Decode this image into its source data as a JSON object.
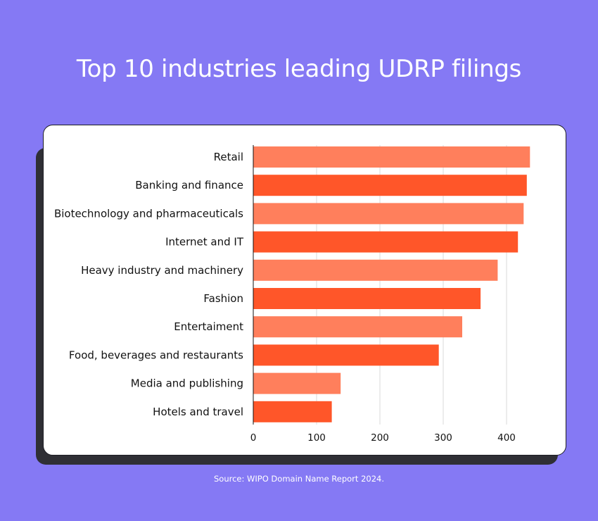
{
  "page": {
    "title": "Top 10 industries leading UDRP filings",
    "source": "Source: WIPO Domain Name Report 2024."
  },
  "colors": {
    "background": "#8579f4",
    "bar_light": "#ff7f5c",
    "bar_dark": "#ff5629",
    "grid": "#d9d9d9",
    "axis": "#111111"
  },
  "chart_data": {
    "type": "bar",
    "orientation": "horizontal",
    "title": "Top 10 industries leading UDRP filings",
    "xlabel": "",
    "ylabel": "",
    "categories": [
      "Retail",
      "Banking and finance",
      "Biotechnology and pharmaceuticals",
      "Internet and IT",
      "Heavy industry and machinery",
      "Fashion",
      "Entertaiment",
      "Food, beverages and restaurants",
      "Media and publishing",
      "Hotels and travel"
    ],
    "values": [
      437,
      432,
      427,
      418,
      386,
      359,
      330,
      293,
      138,
      124
    ],
    "xlim": [
      0,
      450
    ],
    "xticks": [
      0,
      100,
      200,
      300,
      400
    ],
    "grid": "vertical",
    "legend": "none"
  }
}
